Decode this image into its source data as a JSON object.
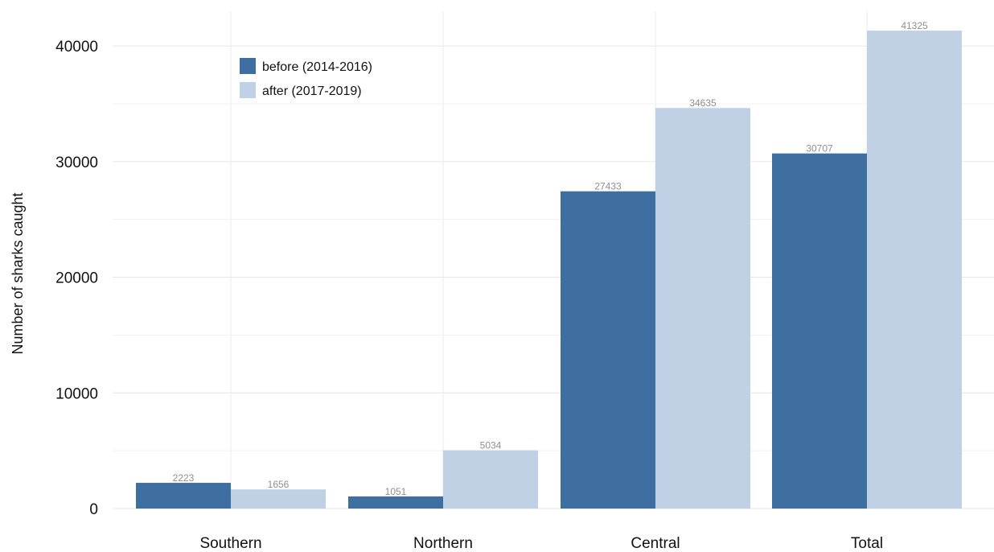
{
  "chart_data": {
    "type": "bar",
    "title": "",
    "xlabel": "",
    "ylabel": "Number of sharks caught",
    "categories": [
      "Southern",
      "Northern",
      "Central",
      "Total"
    ],
    "series": [
      {
        "name": "before (2014-2016)",
        "color": "#3f6fa0",
        "values": [
          2223,
          1051,
          27433,
          30707
        ],
        "labels": [
          "2223",
          "1051",
          "27433",
          "30707"
        ]
      },
      {
        "name": "after (2017-2019)",
        "color": "#c0d1e6",
        "values": [
          1656,
          5034,
          34635,
          41325
        ],
        "labels": [
          "1656",
          "5034",
          "34635",
          "41325"
        ]
      }
    ],
    "ylim": [
      0,
      43000
    ],
    "yticks": [
      0,
      10000,
      20000,
      30000,
      40000
    ],
    "ytick_labels": [
      "0",
      "10000",
      "20000",
      "30000",
      "40000"
    ],
    "grid": true,
    "legend_position": "top-left"
  }
}
